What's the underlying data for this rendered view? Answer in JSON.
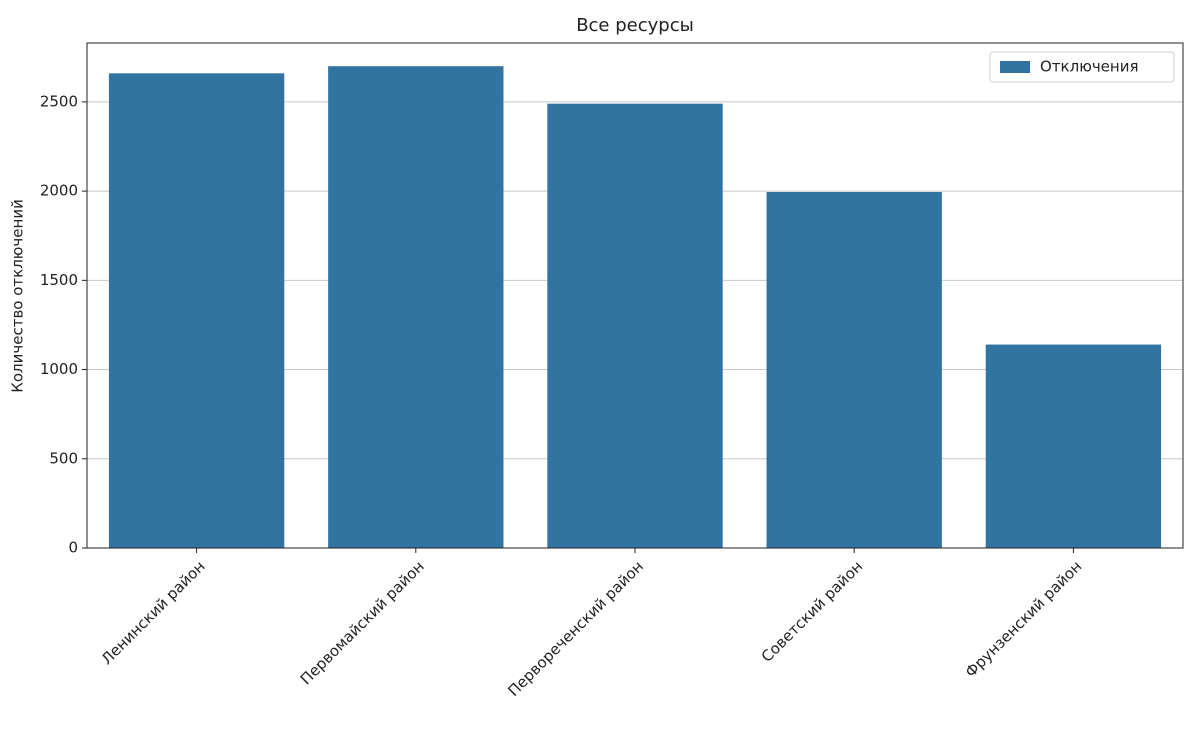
{
  "chart_data": {
    "type": "bar",
    "title": "Все ресурсы",
    "y_label": "Количество отключений",
    "categories": [
      "Ленинский район",
      "Первомайский район",
      "Первореченский район",
      "Советский район",
      "Фрунзенский район"
    ],
    "series": [
      {
        "name": "Отключения",
        "color": "#3274a1",
        "values": [
          2660,
          2700,
          2490,
          1995,
          1140
        ]
      }
    ],
    "ylim": [
      0,
      2830
    ],
    "yticks": [
      0,
      500,
      1000,
      1500,
      2000,
      2500
    ],
    "grid": true,
    "legend": "upper right"
  }
}
